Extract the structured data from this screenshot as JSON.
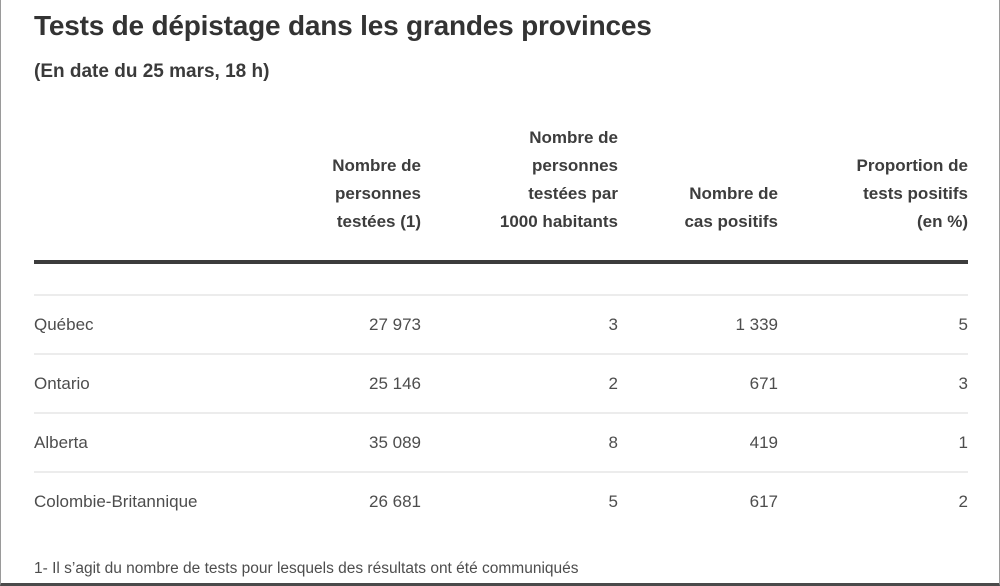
{
  "title": "Tests de dépistage dans les grandes provinces",
  "subtitle": "(En date du 25 mars, 18 h)",
  "table": {
    "columns": {
      "province": "",
      "tested": "Nombre de\npersonnes\ntestées (1)",
      "per1000": "Nombre de\npersonnes\ntestées par\n1000 habitants",
      "positive": "Nombre de\ncas positifs",
      "proportion": "Proportion de\ntests positifs\n(en %)"
    },
    "rows": [
      {
        "province": "Québec",
        "tested": "27 973",
        "per1000": "3",
        "positive": "1 339",
        "proportion": "5"
      },
      {
        "province": "Ontario",
        "tested": "25 146",
        "per1000": "2",
        "positive": "671",
        "proportion": "3"
      },
      {
        "province": "Alberta",
        "tested": "35 089",
        "per1000": "8",
        "positive": "419",
        "proportion": "1"
      },
      {
        "province": "Colombie-Britannique",
        "tested": "26 681",
        "per1000": "5",
        "positive": "617",
        "proportion": "2"
      }
    ]
  },
  "footnote": "1- Il s’agit du nombre de tests pour lesquels des résultats ont été communiqués",
  "colors": {
    "title_text": "#333333",
    "header_text": "#3d3d3d",
    "body_text": "#4d4d4d",
    "header_rule": "#3c3c3c",
    "row_rule": "#ececec",
    "frame_border": "#9a9a9a",
    "background": "#ffffff"
  },
  "chart_data": {
    "type": "table",
    "title": "Tests de dépistage dans les grandes provinces",
    "subtitle": "(En date du 25 mars, 18 h)",
    "columns": [
      "Nombre de personnes testées (1)",
      "Nombre de personnes testées par 1000 habitants",
      "Nombre de cas positifs",
      "Proportion de tests positifs (en %)"
    ],
    "rows": [
      {
        "province": "Québec",
        "values": [
          27973,
          3,
          1339,
          5
        ]
      },
      {
        "province": "Ontario",
        "values": [
          25146,
          2,
          671,
          3
        ]
      },
      {
        "province": "Alberta",
        "values": [
          35089,
          8,
          419,
          1
        ]
      },
      {
        "province": "Colombie-Britannique",
        "values": [
          26681,
          5,
          617,
          2
        ]
      }
    ],
    "footnote": "1- Il s’agit du nombre de tests pour lesquels des résultats ont été communiqués"
  }
}
